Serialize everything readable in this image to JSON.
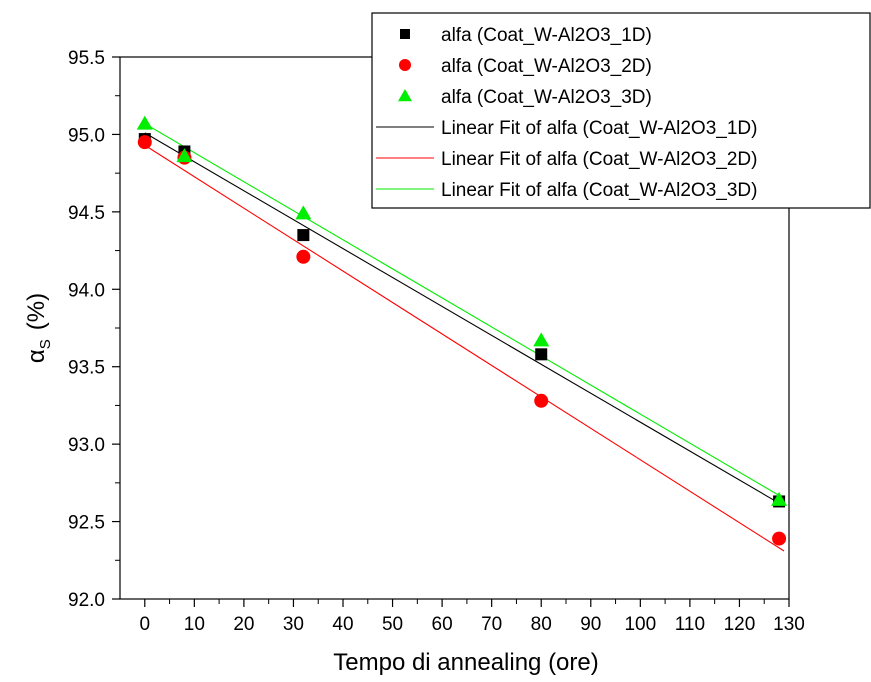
{
  "chart_data": {
    "type": "scatter",
    "xlabel": "Tempo di annealing  (ore)",
    "ylabel": {
      "symbol": "α",
      "subscript": "S",
      "unit": "(%)"
    },
    "xlim": [
      -5,
      130
    ],
    "ylim": [
      92.0,
      95.5
    ],
    "xticks": [
      0,
      10,
      20,
      30,
      40,
      50,
      60,
      70,
      80,
      90,
      100,
      110,
      120,
      130
    ],
    "yticks": [
      92.0,
      92.5,
      93.0,
      93.5,
      94.0,
      94.5,
      95.0,
      95.5
    ],
    "ytick_labels": [
      "92.0",
      "92.5",
      "93.0",
      "93.5",
      "94.0",
      "94.5",
      "95.0",
      "95.5"
    ],
    "grid": false,
    "legend_position": "top-right",
    "series": [
      {
        "name": "alfa (Coat_W-Al2O3_1D)",
        "marker": "square",
        "color": "#000000",
        "x": [
          0,
          8,
          32,
          80,
          128
        ],
        "y": [
          94.97,
          94.89,
          94.35,
          93.58,
          92.63
        ]
      },
      {
        "name": "alfa (Coat_W-Al2O3_2D)",
        "marker": "circle",
        "color": "#ff0000",
        "x": [
          0,
          8,
          32,
          80,
          128
        ],
        "y": [
          94.95,
          94.85,
          94.21,
          93.28,
          92.39
        ]
      },
      {
        "name": "alfa (Coat_W-Al2O3_3D)",
        "marker": "triangle",
        "color": "#00ee00",
        "x": [
          0,
          8,
          32,
          80,
          128
        ],
        "y": [
          95.07,
          94.86,
          94.49,
          93.67,
          92.64
        ]
      }
    ],
    "fits": [
      {
        "name": "Linear Fit of alfa (Coat_W-Al2O3_1D)",
        "color": "#000000",
        "x": [
          0,
          129
        ],
        "y": [
          95.01,
          92.6
        ]
      },
      {
        "name": "Linear Fit of alfa (Coat_W-Al2O3_2D)",
        "color": "#ff0000",
        "x": [
          0,
          129
        ],
        "y": [
          94.93,
          92.31
        ]
      },
      {
        "name": "Linear Fit of alfa (Coat_W-Al2O3_3D)",
        "color": "#00ee00",
        "x": [
          0,
          129
        ],
        "y": [
          95.07,
          92.65
        ]
      }
    ]
  }
}
